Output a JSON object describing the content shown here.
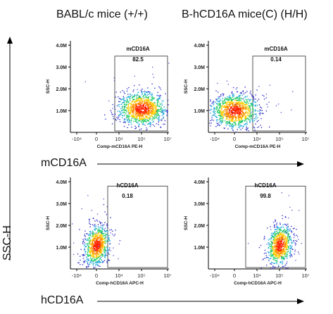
{
  "column_titles": [
    "BABL/c mice (+/+)",
    "B-hCD16A mice(C) (H/H)"
  ],
  "row_labels": [
    "mCD16A",
    "hCD16A"
  ],
  "y_axis_title": "SSC-H",
  "colors": {
    "density_low": "#3333cc",
    "density_mid": "#22cc66",
    "density_high": "#ffcc00",
    "density_peak": "#ff2200",
    "gate": "#555555",
    "axis": "#000000"
  },
  "chart_data": [
    {
      "type": "scatter",
      "title": "mCD16A",
      "gate_percent": "82.5",
      "xlabel": "Comp-mCD16A PE-H",
      "ylabel": "SSC-H",
      "x_ticks": [
        "-10⁴",
        "0",
        "10⁴",
        "10⁵",
        "10⁷"
      ],
      "y_ticks": [
        "1.0M",
        "2.0M",
        "3.0M",
        "4.0M"
      ],
      "ylim": [
        0,
        4200000
      ],
      "population": {
        "center_x": "10⁵",
        "center_y": 1100000,
        "spread": "wide"
      }
    },
    {
      "type": "scatter",
      "title": "mCD16A",
      "gate_percent": "0.14",
      "xlabel": "Comp-mCD16A PE-H",
      "ylabel": "SSC-H",
      "x_ticks": [
        "-10⁴",
        "0",
        "10⁴",
        "10⁵",
        "10⁷"
      ],
      "y_ticks": [
        "1.0M",
        "2.0M",
        "3.0M",
        "4.0M"
      ],
      "ylim": [
        0,
        4200000
      ],
      "population": {
        "center_x": "0",
        "center_y": 1000000,
        "spread": "wide"
      }
    },
    {
      "type": "scatter",
      "title": "hCD16A",
      "gate_percent": "0.18",
      "xlabel": "Comp-hCD16A APC-H",
      "ylabel": "SSC-H",
      "x_ticks": [
        "-10⁴",
        "0",
        "10⁴",
        "10⁵",
        "10⁷"
      ],
      "y_ticks": [
        "1.0M",
        "2.0M",
        "3.0M",
        "4.0M"
      ],
      "ylim": [
        0,
        4200000
      ],
      "population": {
        "center_x": "0",
        "center_y": 1100000,
        "spread": "tight"
      }
    },
    {
      "type": "scatter",
      "title": "hCD16A",
      "gate_percent": "99.8",
      "xlabel": "Comp-hCD16A APC-H",
      "ylabel": "SSC-H",
      "x_ticks": [
        "-10⁴",
        "0",
        "10⁴",
        "10⁵",
        "10⁷"
      ],
      "y_ticks": [
        "1.0M",
        "2.0M",
        "3.0M",
        "4.0M"
      ],
      "ylim": [
        0,
        4200000
      ],
      "population": {
        "center_x": "10⁵",
        "center_y": 1100000,
        "spread": "tight"
      }
    }
  ]
}
